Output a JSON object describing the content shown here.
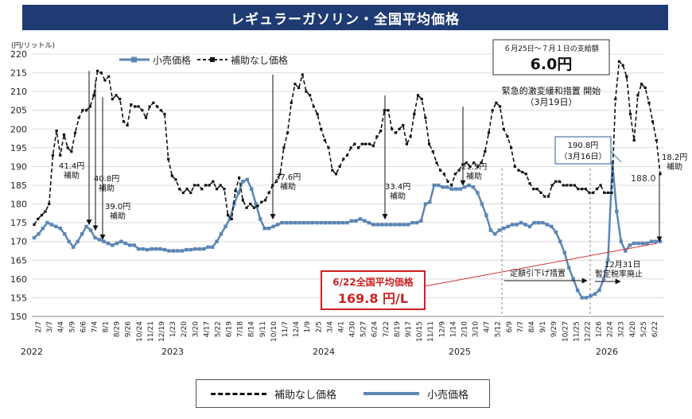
{
  "title": "レギュラーガソリン・全国平均価格",
  "chart_data": {
    "type": "line",
    "y_unit_label": "(円/リットル)",
    "ylim": [
      150,
      220
    ],
    "y_ticks": [
      150,
      155,
      160,
      165,
      170,
      175,
      180,
      185,
      190,
      195,
      200,
      205,
      210,
      215,
      220
    ],
    "x_tick_labels": [
      "2/7",
      "3/7",
      "4/4",
      "5/9",
      "6/6",
      "7/4",
      "8/1",
      "8/29",
      "9/26",
      "10/24",
      "11/21",
      "12/19",
      "1/23",
      "2/20",
      "3/20",
      "4/17",
      "5/22",
      "6/19",
      "7/18",
      "8/14",
      "9/11",
      "10/10",
      "11/7",
      "12/4",
      "1/9",
      "2/5",
      "3/4",
      "4/1",
      "4/30",
      "5/27",
      "6/24",
      "7/22",
      "8/19",
      "9/17",
      "10/15",
      "11/11",
      "12/9",
      "1/14",
      "2/10",
      "3/10",
      "4/7",
      "5/12",
      "6/9",
      "7/7",
      "8/4",
      "9/1",
      "9/29",
      "10/27",
      "11/25",
      "12/22",
      "1/26",
      "2/24",
      "3/23",
      "4/20",
      "5/25",
      "6/22"
    ],
    "year_labels": [
      "2022",
      "2023",
      "2024",
      "2025",
      "2026"
    ],
    "legend_top": [
      "小売価格",
      "補助なし価格"
    ],
    "legend_bottom": [
      "補助なし価格",
      "小売価格"
    ],
    "series": [
      {
        "name": "小売価格",
        "color": "#5b86b5",
        "values": [
          171,
          172,
          173.5,
          175,
          174.5,
          174,
          173.5,
          172,
          170,
          168.5,
          170,
          172,
          174,
          173,
          171,
          170.5,
          170,
          169.5,
          169,
          169.5,
          170,
          169.5,
          169,
          169,
          168,
          168,
          167.8,
          168,
          168,
          168,
          167.8,
          167.5,
          167.5,
          167.5,
          167.5,
          167.8,
          167.8,
          168,
          168,
          168,
          168.5,
          168.5,
          170,
          172,
          174,
          176,
          180,
          183,
          186,
          186.5,
          184,
          180,
          176,
          173.5,
          173.5,
          174,
          174.5,
          175,
          175,
          175,
          175,
          175,
          175,
          175,
          175,
          175,
          175,
          175,
          175,
          175,
          175,
          175,
          175,
          175.5,
          175.5,
          176,
          175.5,
          175,
          174.5,
          174.5,
          174.5,
          174.5,
          174.5,
          174.5,
          174.5,
          174.5,
          174.5,
          175,
          175,
          175.5,
          180,
          180.5,
          185,
          185,
          184.5,
          184.5,
          184,
          184,
          184,
          184.5,
          185,
          184.5,
          183,
          180,
          177,
          173,
          172,
          173,
          173.5,
          174,
          174.5,
          174.5,
          175,
          174.5,
          174,
          175,
          175,
          175,
          174.5,
          174,
          172.5,
          170,
          167,
          163,
          160,
          157,
          155,
          155,
          155.5,
          156,
          157,
          160,
          165,
          191,
          178,
          170,
          167.5,
          169,
          169.5,
          169.5,
          169.5,
          169.5,
          170,
          170,
          170
        ]
      },
      {
        "name": "補助なし価格",
        "color": "#111111",
        "values": [
          174.5,
          176,
          177,
          178,
          180,
          193,
          199.5,
          193,
          198.5,
          195,
          194,
          199,
          203,
          205,
          205,
          206,
          209,
          215.5,
          215,
          213,
          214,
          208,
          209,
          208,
          202,
          201,
          206.5,
          206,
          206,
          205,
          203,
          206,
          207,
          206,
          205,
          204,
          192,
          187.5,
          186.5,
          184,
          183,
          184,
          183,
          185,
          185,
          184,
          185,
          185,
          186,
          184,
          185,
          184,
          177,
          176,
          183.5,
          187,
          181,
          179,
          180,
          179,
          179.5,
          180.5,
          181,
          183,
          185,
          186,
          188,
          195,
          199,
          207,
          212,
          211,
          214.5,
          210,
          209,
          206,
          204,
          200,
          197,
          195,
          189,
          188,
          190,
          192,
          193,
          195,
          196,
          195,
          196,
          196,
          196,
          195.5,
          198,
          199.5,
          205,
          205,
          200,
          199,
          200,
          201,
          196,
          198,
          204,
          209,
          208,
          203,
          196,
          194,
          191,
          189,
          188,
          186,
          185,
          188,
          189,
          190.5,
          191,
          190,
          191,
          190,
          191,
          194,
          199,
          205,
          207,
          206,
          200,
          198,
          195,
          190,
          189,
          188.5,
          188,
          185.5,
          184,
          184,
          183,
          182,
          182,
          185,
          186,
          186,
          185,
          185,
          185,
          185,
          184,
          184,
          184,
          183,
          183,
          184,
          185,
          183,
          183,
          183,
          208,
          218,
          217,
          214,
          204,
          197,
          209,
          212,
          211,
          207,
          202,
          197,
          188
        ]
      }
    ],
    "annotations": {
      "subsidy_box_line1": "６月25日～７月１日の支給額",
      "subsidy_box_line2": "6.0円",
      "emergency_line1": "緊急的激変緩和措置 開始",
      "emergency_line2": "（3月19日）",
      "gap_1_value": "41.4円",
      "gap_1_label": "補助",
      "gap_2_value": "40.8円",
      "gap_2_label": "補助",
      "gap_3_value": "39.0円",
      "gap_3_label": "補助",
      "gap_4_value": "37.6円",
      "gap_4_label": "補助",
      "gap_5_value": "33.4円",
      "gap_5_label": "補助",
      "gap_6_value": "21.5円",
      "gap_6_label": "補助",
      "gap_7_value": "18.2円",
      "gap_7_label": "補助",
      "peak_value": "190.8円",
      "peak_date": "（3月16日）",
      "end_value": "188.0",
      "teigaku_label": "定額引下げ措置",
      "abolish_date": "12月31日",
      "abolish_label": "暫定税率廃止",
      "current_title": "6/22全国平均価格",
      "current_value": "169.8 円/L"
    }
  }
}
